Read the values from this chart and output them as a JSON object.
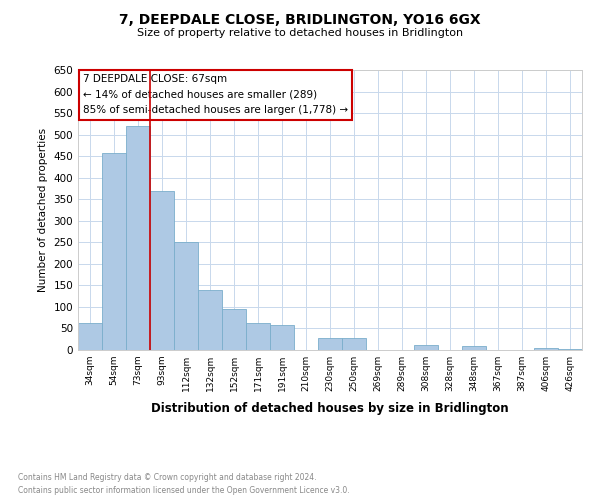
{
  "title": "7, DEEPDALE CLOSE, BRIDLINGTON, YO16 6GX",
  "subtitle": "Size of property relative to detached houses in Bridlington",
  "xlabel": "Distribution of detached houses by size in Bridlington",
  "ylabel": "Number of detached properties",
  "categories": [
    "34sqm",
    "54sqm",
    "73sqm",
    "93sqm",
    "112sqm",
    "132sqm",
    "152sqm",
    "171sqm",
    "191sqm",
    "210sqm",
    "230sqm",
    "250sqm",
    "269sqm",
    "289sqm",
    "308sqm",
    "328sqm",
    "348sqm",
    "367sqm",
    "387sqm",
    "406sqm",
    "426sqm"
  ],
  "values": [
    62,
    457,
    520,
    370,
    250,
    140,
    95,
    62,
    58,
    0,
    28,
    28,
    0,
    0,
    12,
    0,
    10,
    0,
    0,
    5,
    2
  ],
  "bar_color": "#aec9e4",
  "bar_edge_color": "#7aaecb",
  "vline_x": 2.5,
  "annotation_line1": "7 DEEPDALE CLOSE: 67sqm",
  "annotation_line2": "← 14% of detached houses are smaller (289)",
  "annotation_line3": "85% of semi-detached houses are larger (1,778) →",
  "annotation_box_color": "#ffffff",
  "annotation_box_edge": "#cc0000",
  "vline_color": "#cc0000",
  "ylim": [
    0,
    650
  ],
  "yticks": [
    0,
    50,
    100,
    150,
    200,
    250,
    300,
    350,
    400,
    450,
    500,
    550,
    600,
    650
  ],
  "footer_line1": "Contains HM Land Registry data © Crown copyright and database right 2024.",
  "footer_line2": "Contains public sector information licensed under the Open Government Licence v3.0.",
  "bg_color": "#ffffff",
  "grid_color": "#c8d8ec"
}
